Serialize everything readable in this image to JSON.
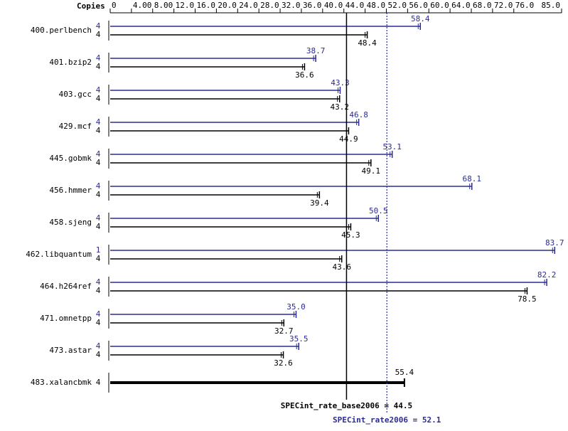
{
  "chart_data": {
    "type": "bar",
    "axis_label": "Copies",
    "categories": [
      "400.perlbench",
      "401.bzip2",
      "403.gcc",
      "429.mcf",
      "445.gobmk",
      "456.hmmer",
      "458.sjeng",
      "462.libquantum",
      "464.h264ref",
      "471.omnetpp",
      "473.astar",
      "483.xalancbmk"
    ],
    "series": [
      {
        "color": "#2b2b96",
        "copies": [
          4,
          4,
          4,
          4,
          4,
          4,
          4,
          1,
          4,
          4,
          4,
          null
        ],
        "values": [
          58.4,
          38.7,
          43.3,
          46.8,
          53.1,
          68.1,
          50.5,
          83.7,
          82.2,
          35.0,
          35.5,
          null
        ],
        "value_labels": [
          "58.4",
          "38.7",
          "43.3",
          "46.8",
          "53.1",
          "68.1",
          "50.5",
          "83.7",
          "82.2",
          "35.0",
          "35.5",
          null
        ]
      },
      {
        "color": "#000000",
        "copies": [
          4,
          4,
          4,
          4,
          4,
          4,
          4,
          4,
          4,
          4,
          4,
          4
        ],
        "values": [
          48.4,
          36.6,
          43.2,
          44.9,
          49.1,
          39.4,
          45.3,
          43.6,
          78.5,
          32.7,
          32.6,
          55.4
        ]
      }
    ],
    "xlim": [
      0,
      85
    ],
    "xticks": [
      0,
      {
        "value": 4,
        "label": "4.00"
      },
      {
        "value": 8,
        "label": "8.00"
      },
      {
        "value": 12,
        "label": "12.0"
      },
      {
        "value": 16,
        "label": "16.0"
      },
      {
        "value": 20,
        "label": "20.0"
      },
      {
        "value": 24,
        "label": "24.0"
      },
      {
        "value": 28,
        "label": "28.0"
      },
      {
        "value": 32,
        "label": "32.0"
      },
      {
        "value": 36,
        "label": "36.0"
      },
      {
        "value": 40,
        "label": "40.0"
      },
      {
        "value": 44,
        "label": "44.0"
      },
      {
        "value": 48,
        "label": "48.0"
      },
      {
        "value": 52,
        "label": "52.0"
      },
      {
        "value": 56,
        "label": "56.0"
      },
      {
        "value": 60,
        "label": "60.0"
      },
      {
        "value": 64,
        "label": "64.0"
      },
      {
        "value": 68,
        "label": "68.0"
      },
      {
        "value": 72,
        "label": "72.0"
      },
      {
        "value": 76,
        "label": "76.0"
      },
      {
        "value": 85,
        "label": "85.0"
      }
    ],
    "reference_lines": [
      {
        "label": "SPECint_rate_base2006 = 44.5",
        "value": 44.5,
        "color": "#000000"
      },
      {
        "label": "SPECint_rate2006 = 52.1",
        "value": 52.1,
        "color": "#2b2b96"
      }
    ]
  }
}
